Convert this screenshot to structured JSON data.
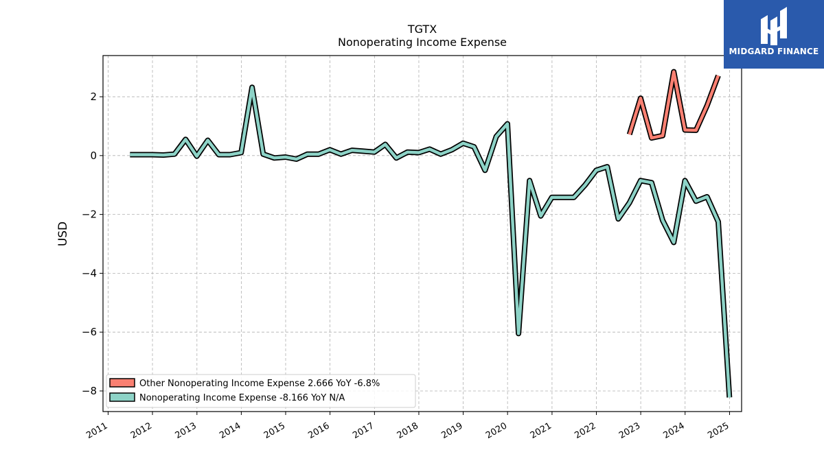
{
  "logo": {
    "text": "MIDGARD FINANCE",
    "background": "#2a5aac"
  },
  "chart_data": {
    "type": "line",
    "title": "TGTX",
    "subtitle": "Nonoperating Income Expense",
    "ylabel": "USD",
    "xlabel": "",
    "xlim": [
      "2010-11-20",
      "2025-04-10"
    ],
    "ylim": [
      -8.7,
      3.4
    ],
    "yticks": [
      2,
      0,
      -2,
      -4,
      -6,
      -8
    ],
    "ytick_labels": [
      "2",
      "0",
      "−2",
      "−4",
      "−6",
      "−8"
    ],
    "xticks": [
      "2011",
      "2012",
      "2013",
      "2014",
      "2015",
      "2016",
      "2017",
      "2018",
      "2019",
      "2020",
      "2021",
      "2022",
      "2023",
      "2024",
      "2025"
    ],
    "grid": true,
    "legend_position": "lower-left",
    "legend_labels": [
      "Other Nonoperating Income Expense  2.666 YoY -6.8%",
      "Nonoperating Income Expense  -8.166 YoY N/A"
    ],
    "series": [
      {
        "name": "Other Nonoperating Income Expense",
        "color": "#fa8072",
        "points": [
          [
            "2022-09-30",
            0.72
          ],
          [
            "2022-12-31",
            1.95
          ],
          [
            "2023-03-31",
            0.6
          ],
          [
            "2023-06-30",
            0.68
          ],
          [
            "2023-09-30",
            2.85
          ],
          [
            "2023-12-31",
            0.87
          ],
          [
            "2024-03-31",
            0.86
          ],
          [
            "2024-06-30",
            1.7
          ],
          [
            "2024-09-30",
            2.72
          ]
        ]
      },
      {
        "name": "Nonoperating Income Expense",
        "color": "#8dd3c7",
        "points": [
          [
            "2011-06-30",
            0.03
          ],
          [
            "2011-09-30",
            0.03
          ],
          [
            "2011-12-31",
            0.03
          ],
          [
            "2012-03-31",
            0.02
          ],
          [
            "2012-06-30",
            0.05
          ],
          [
            "2012-09-30",
            0.55
          ],
          [
            "2012-12-31",
            -0.02
          ],
          [
            "2013-03-31",
            0.52
          ],
          [
            "2013-06-30",
            0.03
          ],
          [
            "2013-09-30",
            0.03
          ],
          [
            "2013-12-31",
            0.1
          ],
          [
            "2014-03-31",
            2.32
          ],
          [
            "2014-06-30",
            0.05
          ],
          [
            "2014-09-30",
            -0.08
          ],
          [
            "2014-12-31",
            -0.05
          ],
          [
            "2015-03-31",
            -0.12
          ],
          [
            "2015-06-30",
            0.05
          ],
          [
            "2015-09-30",
            0.05
          ],
          [
            "2015-12-31",
            0.2
          ],
          [
            "2016-03-31",
            0.05
          ],
          [
            "2016-06-30",
            0.18
          ],
          [
            "2016-09-30",
            0.15
          ],
          [
            "2016-12-31",
            0.12
          ],
          [
            "2017-03-31",
            0.38
          ],
          [
            "2017-06-30",
            -0.08
          ],
          [
            "2017-09-30",
            0.12
          ],
          [
            "2017-12-31",
            0.1
          ],
          [
            "2018-03-31",
            0.22
          ],
          [
            "2018-06-30",
            0.05
          ],
          [
            "2018-09-30",
            0.2
          ],
          [
            "2018-12-31",
            0.42
          ],
          [
            "2019-03-31",
            0.3
          ],
          [
            "2019-06-30",
            -0.5
          ],
          [
            "2019-09-30",
            0.65
          ],
          [
            "2019-12-31",
            1.08
          ],
          [
            "2020-03-31",
            -6.05
          ],
          [
            "2020-06-30",
            -0.85
          ],
          [
            "2020-09-30",
            -2.05
          ],
          [
            "2020-12-31",
            -1.42
          ],
          [
            "2021-03-31",
            -1.42
          ],
          [
            "2021-06-30",
            -1.42
          ],
          [
            "2021-09-30",
            -1.0
          ],
          [
            "2021-12-31",
            -0.5
          ],
          [
            "2022-03-31",
            -0.38
          ],
          [
            "2022-06-30",
            -2.15
          ],
          [
            "2022-09-30",
            -1.6
          ],
          [
            "2022-12-31",
            -0.85
          ],
          [
            "2023-03-31",
            -0.92
          ],
          [
            "2023-06-30",
            -2.2
          ],
          [
            "2023-09-30",
            -2.95
          ],
          [
            "2023-12-31",
            -0.85
          ],
          [
            "2024-03-31",
            -1.55
          ],
          [
            "2024-06-30",
            -1.4
          ],
          [
            "2024-09-30",
            -2.25
          ],
          [
            "2024-12-31",
            -8.22
          ]
        ]
      }
    ]
  }
}
